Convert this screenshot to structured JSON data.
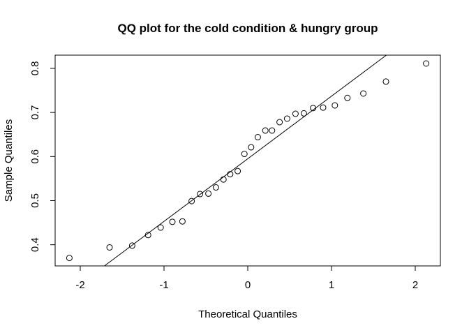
{
  "chart_data": {
    "type": "scatter",
    "title": "QQ plot for the cold condition & hungry group",
    "xlabel": "Theoretical Quantiles",
    "ylabel": "Sample Quantiles",
    "xlim": [
      -2.3,
      2.3
    ],
    "ylim": [
      0.352,
      0.83
    ],
    "x_ticks": [
      -2,
      -1,
      0,
      1,
      2
    ],
    "x_tick_labels": [
      "-2",
      "-1",
      "0",
      "1",
      "2"
    ],
    "y_ticks": [
      0.4,
      0.5,
      0.6,
      0.7,
      0.8
    ],
    "y_tick_labels": [
      "0.4",
      "0.5",
      "0.6",
      "0.7",
      "0.8"
    ],
    "grid": false,
    "series": [
      {
        "marker": "open-circle",
        "points": [
          {
            "x": -2.13,
            "y": 0.37
          },
          {
            "x": -1.65,
            "y": 0.394
          },
          {
            "x": -1.38,
            "y": 0.398
          },
          {
            "x": -1.19,
            "y": 0.422
          },
          {
            "x": -1.04,
            "y": 0.439
          },
          {
            "x": -0.9,
            "y": 0.452
          },
          {
            "x": -0.78,
            "y": 0.453
          },
          {
            "x": -0.67,
            "y": 0.499
          },
          {
            "x": -0.57,
            "y": 0.515
          },
          {
            "x": -0.47,
            "y": 0.516
          },
          {
            "x": -0.38,
            "y": 0.53
          },
          {
            "x": -0.29,
            "y": 0.548
          },
          {
            "x": -0.21,
            "y": 0.56
          },
          {
            "x": -0.12,
            "y": 0.567
          },
          {
            "x": -0.04,
            "y": 0.606
          },
          {
            "x": 0.04,
            "y": 0.621
          },
          {
            "x": 0.12,
            "y": 0.644
          },
          {
            "x": 0.21,
            "y": 0.659
          },
          {
            "x": 0.29,
            "y": 0.659
          },
          {
            "x": 0.38,
            "y": 0.678
          },
          {
            "x": 0.47,
            "y": 0.686
          },
          {
            "x": 0.57,
            "y": 0.697
          },
          {
            "x": 0.67,
            "y": 0.698
          },
          {
            "x": 0.78,
            "y": 0.71
          },
          {
            "x": 0.9,
            "y": 0.711
          },
          {
            "x": 1.04,
            "y": 0.716
          },
          {
            "x": 1.19,
            "y": 0.733
          },
          {
            "x": 1.38,
            "y": 0.743
          },
          {
            "x": 1.65,
            "y": 0.77
          },
          {
            "x": 2.13,
            "y": 0.811
          }
        ]
      }
    ],
    "reference_line": {
      "intercept": 0.595,
      "slope": 0.142
    },
    "colors": {
      "points": "#000000",
      "line": "#000000",
      "background": "#ffffff"
    }
  }
}
